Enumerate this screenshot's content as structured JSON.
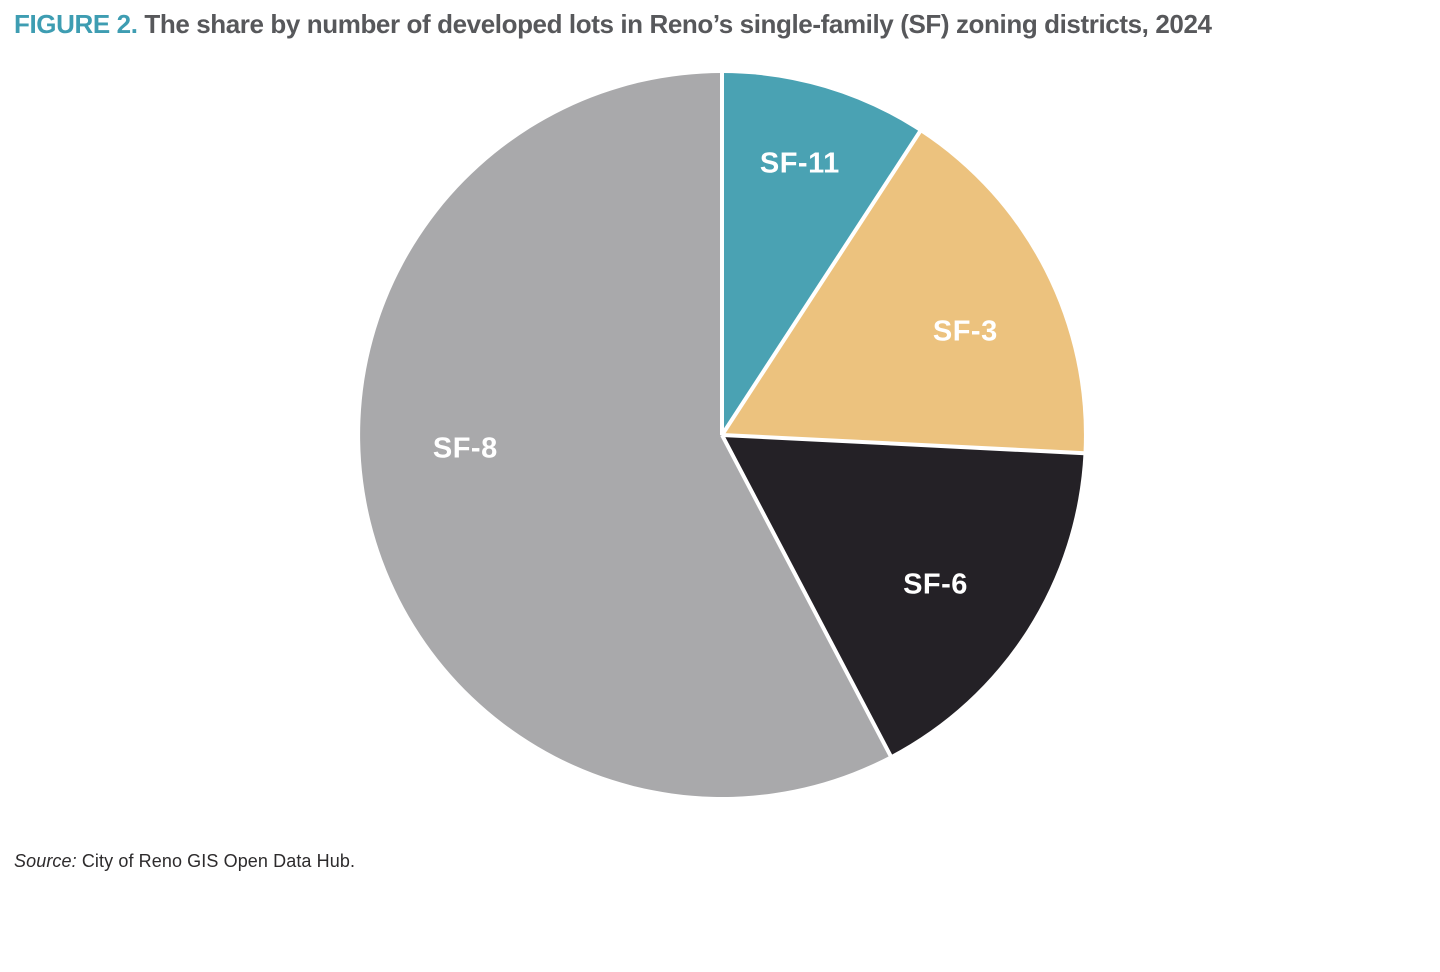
{
  "figure": {
    "label": "FIGURE 2.",
    "title": " The share by number of developed lots in Reno’s single-family (SF) zoning districts, 2024"
  },
  "source": {
    "label": "Source:",
    "text": " City of Reno GIS Open Data Hub."
  },
  "colors": {
    "accent_teal": "#3E9DB2",
    "title_text": "#57585B",
    "source_text": "#2D2B2C",
    "background": "#FFFFFF",
    "divider": "#FFFFFF"
  },
  "chart_data": {
    "type": "pie",
    "title": "The share by number of developed lots in Reno’s single-family (SF) zoning districts, 2024",
    "units": "percent share of developed lots (estimated from slice angles)",
    "start_angle_deg": 0,
    "direction": "clockwise",
    "legend": "none",
    "labels_inside": true,
    "slices": [
      {
        "label": "SF-11",
        "value": 9.2,
        "color": "#4AA2B3",
        "label_angle_deg": 16,
        "label_radius_frac": 0.78
      },
      {
        "label": "SF-3",
        "value": 16.6,
        "color": "#ECC27E",
        "label_angle_deg": 67,
        "label_radius_frac": 0.73
      },
      {
        "label": "SF-6",
        "value": 16.5,
        "color": "#242126",
        "label_angle_deg": 125,
        "label_radius_frac": 0.72
      },
      {
        "label": "SF-8",
        "value": 57.7,
        "color": "#A9A9AB",
        "label_angle_deg": 267,
        "label_radius_frac": 0.71
      }
    ]
  }
}
